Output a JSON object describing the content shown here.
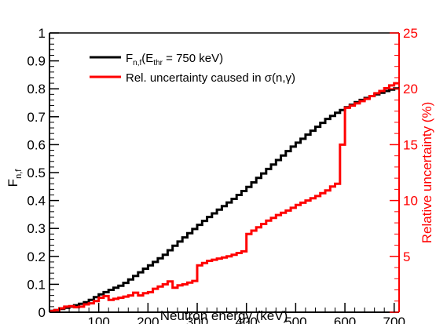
{
  "chart_data": {
    "type": "line",
    "xlabel": "Neutron energy (keV)",
    "ylabel_left": {
      "main": "F",
      "sub": "n,f"
    },
    "ylabel_right": "Relative uncertainty (%)",
    "xlim": [
      0,
      710
    ],
    "ylim_left": [
      0,
      1
    ],
    "ylim_right": [
      0,
      25
    ],
    "x_ticks": [
      100,
      200,
      300,
      400,
      500,
      600,
      700
    ],
    "y_left_ticks": [
      0,
      0.1,
      0.2,
      0.3,
      0.4,
      0.5,
      0.6,
      0.7,
      0.8,
      0.9,
      1
    ],
    "y_left_tick_labels": [
      "0",
      "0.1",
      "0.2",
      "0.3",
      "0.4",
      "0.5",
      "0.6",
      "0.7",
      "0.8",
      "0.9",
      "1"
    ],
    "y_right_ticks": [
      5,
      10,
      15,
      20,
      25
    ],
    "legend": {
      "placement": "top-left",
      "fnf": {
        "main": "F",
        "sub1": "n,f",
        "mid": "(E",
        "sub2": "thr",
        "tail": " = 750 keV)"
      },
      "unc": "Rel. uncertainty caused in σ(n,γ)"
    },
    "series": [
      {
        "axis": "left",
        "color": "#000000",
        "step": "post",
        "x": [
          0,
          10,
          20,
          30,
          40,
          50,
          60,
          70,
          80,
          90,
          100,
          110,
          120,
          130,
          140,
          150,
          160,
          170,
          180,
          190,
          200,
          210,
          220,
          230,
          240,
          250,
          260,
          270,
          280,
          290,
          300,
          310,
          320,
          330,
          340,
          350,
          360,
          370,
          380,
          390,
          400,
          410,
          420,
          430,
          440,
          450,
          460,
          470,
          480,
          490,
          500,
          510,
          520,
          530,
          540,
          550,
          560,
          570,
          580,
          590,
          600,
          610,
          620,
          630,
          640,
          650,
          660,
          670,
          680,
          690,
          700
        ],
        "y": [
          0.005,
          0.008,
          0.012,
          0.016,
          0.02,
          0.025,
          0.03,
          0.036,
          0.044,
          0.054,
          0.064,
          0.072,
          0.08,
          0.088,
          0.095,
          0.105,
          0.117,
          0.13,
          0.143,
          0.156,
          0.168,
          0.18,
          0.193,
          0.206,
          0.222,
          0.238,
          0.253,
          0.268,
          0.283,
          0.298,
          0.313,
          0.327,
          0.341,
          0.354,
          0.367,
          0.38,
          0.393,
          0.406,
          0.42,
          0.434,
          0.449,
          0.465,
          0.481,
          0.497,
          0.513,
          0.529,
          0.545,
          0.561,
          0.577,
          0.593,
          0.607,
          0.621,
          0.636,
          0.65,
          0.664,
          0.678,
          0.692,
          0.703,
          0.714,
          0.724,
          0.734,
          0.743,
          0.752,
          0.76,
          0.767,
          0.774,
          0.78,
          0.786,
          0.792,
          0.797,
          0.801
        ]
      },
      {
        "axis": "right",
        "color": "#ff0000",
        "step": "post",
        "x": [
          0,
          10,
          20,
          30,
          40,
          50,
          60,
          70,
          80,
          90,
          100,
          110,
          120,
          130,
          140,
          150,
          160,
          170,
          180,
          190,
          200,
          210,
          220,
          230,
          240,
          250,
          260,
          270,
          280,
          290,
          300,
          310,
          320,
          330,
          340,
          350,
          360,
          370,
          380,
          390,
          400,
          410,
          420,
          430,
          440,
          450,
          460,
          470,
          480,
          490,
          500,
          510,
          520,
          530,
          540,
          550,
          560,
          570,
          580,
          590,
          600,
          610,
          620,
          630,
          640,
          650,
          660,
          670,
          680,
          690,
          700
        ],
        "y": [
          0.1,
          0.2,
          0.35,
          0.5,
          0.55,
          0.45,
          0.5,
          0.7,
          0.8,
          1.0,
          1.3,
          1.45,
          1.1,
          1.2,
          1.3,
          1.4,
          1.5,
          1.75,
          1.5,
          1.7,
          1.8,
          2.1,
          2.3,
          2.5,
          2.75,
          2.2,
          2.4,
          2.5,
          2.65,
          2.8,
          4.2,
          4.4,
          4.6,
          4.7,
          4.8,
          4.9,
          5.0,
          5.15,
          5.3,
          5.45,
          7.0,
          7.3,
          7.6,
          7.9,
          8.2,
          8.45,
          8.7,
          8.9,
          9.1,
          9.35,
          9.6,
          9.8,
          10.0,
          10.2,
          10.4,
          10.65,
          10.9,
          11.25,
          11.5,
          15.0,
          18.3,
          18.5,
          18.7,
          18.9,
          19.1,
          19.35,
          19.6,
          19.8,
          20.05,
          20.3,
          20.5
        ]
      }
    ]
  }
}
